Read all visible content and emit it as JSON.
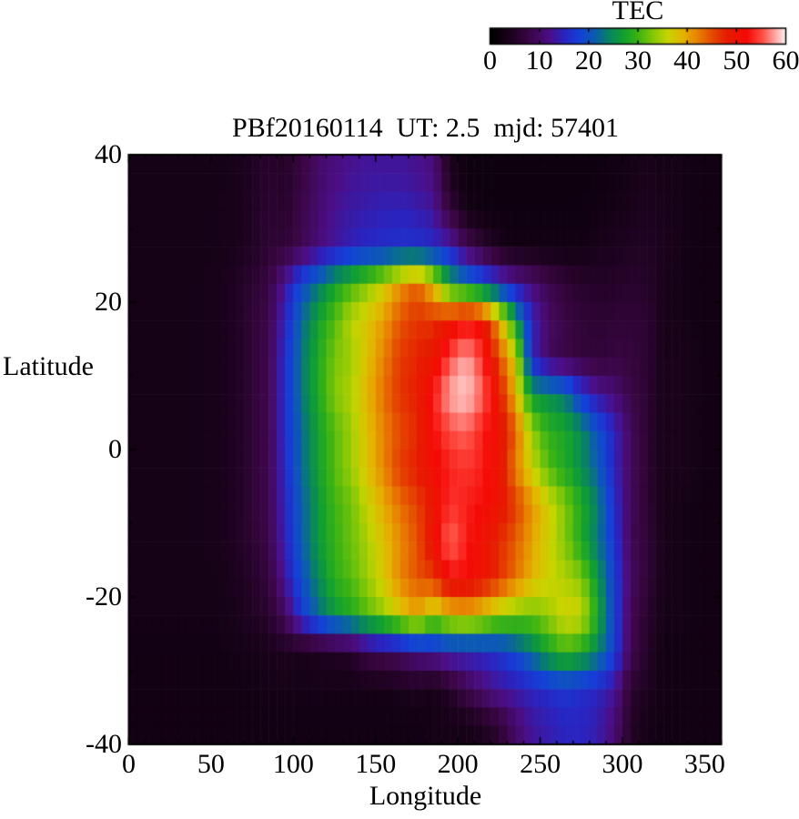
{
  "figure": {
    "title": "PBf20160114  UT: 2.5  mjd: 57401",
    "colorbar": {
      "title": "TEC",
      "min": 0,
      "max": 60,
      "tick_labels": [
        0,
        10,
        20,
        30,
        40,
        50,
        60
      ],
      "minor_ticks": [
        10,
        20,
        30,
        40,
        50
      ]
    },
    "x_axis": {
      "label": "Longitude",
      "min": 0,
      "max": 360,
      "major_ticks": [
        0,
        50,
        100,
        150,
        200,
        250,
        300,
        350
      ],
      "minor_tick_step": 10
    },
    "y_axis": {
      "label": "Latitude",
      "min": -40,
      "max": 40,
      "major_ticks": [
        40,
        20,
        0,
        -20,
        -40
      ],
      "minor_tick_step": 10
    }
  },
  "chart_data": {
    "type": "heatmap",
    "title": "PBf20160114  UT: 2.5  mjd: 57401",
    "xlabel": "Longitude",
    "ylabel": "Latitude",
    "zlabel": "TEC",
    "xlim": [
      0,
      360
    ],
    "ylim": [
      -40,
      40
    ],
    "zlim": [
      0,
      60
    ],
    "grid": false,
    "lon_centers": [
      5,
      15,
      25,
      35,
      45,
      55,
      65,
      75,
      85,
      95,
      105,
      115,
      125,
      135,
      145,
      155,
      165,
      175,
      185,
      195,
      205,
      215,
      225,
      235,
      245,
      255,
      265,
      275,
      285,
      295,
      305,
      315,
      325,
      335,
      345,
      355
    ],
    "lat_centers": [
      37.5,
      32.5,
      27.5,
      22.5,
      17.5,
      12.5,
      7.5,
      2.5,
      -2.5,
      -7.5,
      -12.5,
      -17.5,
      -22.5,
      -27.5,
      -32.5,
      -37.5
    ],
    "values": [
      [
        3,
        3,
        3,
        3,
        3,
        3,
        3.5,
        4.5,
        5.5,
        5,
        7.5,
        10,
        11.5,
        12.5,
        13,
        13,
        13,
        12.5,
        11.5,
        4,
        2,
        2,
        2,
        2,
        2,
        2,
        2,
        2,
        2,
        2.5,
        3,
        3.5,
        3,
        3,
        2.5,
        2.5
      ],
      [
        3,
        3,
        3,
        3,
        3,
        3.2,
        3.5,
        4.5,
        6,
        5.5,
        8,
        10.5,
        12.5,
        13.5,
        14,
        14.5,
        14.5,
        14,
        13,
        7,
        3,
        2,
        2,
        2,
        2,
        2,
        2,
        2,
        2.5,
        3,
        3.5,
        4,
        3.5,
        3,
        2.5,
        2.5
      ],
      [
        3,
        3,
        3,
        3,
        3,
        3.2,
        3.5,
        4.5,
        6,
        6.5,
        8.5,
        11,
        13,
        14.5,
        15.5,
        16,
        16.5,
        16.5,
        15.5,
        14,
        9,
        6,
        3.5,
        2.5,
        2.5,
        2.5,
        2.5,
        2.5,
        3.5,
        4,
        4.5,
        4.5,
        4,
        3,
        2.5,
        2.5
      ],
      [
        3,
        3,
        3,
        3,
        3.2,
        3.5,
        4.5,
        6,
        7.5,
        13,
        19,
        23,
        27,
        30,
        33,
        36.5,
        41,
        44,
        38,
        27,
        23.5,
        20,
        16.5,
        13,
        11,
        8.5,
        6.5,
        5.5,
        5,
        5,
        5.5,
        5,
        3.5,
        3,
        2.5,
        2.5
      ],
      [
        3,
        3,
        3,
        3,
        3.2,
        3.5,
        4.5,
        6.5,
        8,
        15,
        22,
        27,
        31,
        35.5,
        37.5,
        40.5,
        44.5,
        46.5,
        46.5,
        49,
        52,
        50,
        40,
        27,
        15,
        10,
        8,
        6.5,
        6,
        6.5,
        6.5,
        6,
        3.5,
        3,
        2.5,
        2.5
      ],
      [
        3,
        3,
        3,
        3,
        3.2,
        3.5,
        4.5,
        6.5,
        8.5,
        16,
        23,
        28,
        32.5,
        34,
        38,
        42,
        46,
        47.5,
        49,
        55,
        58,
        54,
        45,
        37,
        15,
        9.5,
        8,
        7,
        6.5,
        7.5,
        7,
        6,
        3.5,
        3.5,
        3,
        2.5
      ],
      [
        3,
        3,
        3,
        3,
        3.2,
        3.5,
        4.5,
        6.5,
        8.5,
        16,
        23,
        28,
        33,
        35,
        39,
        43,
        46.5,
        48,
        53,
        58,
        59,
        56,
        49,
        39,
        26,
        25,
        23,
        17,
        13,
        11,
        8,
        6,
        3.5,
        3.5,
        3,
        2.5
      ],
      [
        3,
        3,
        3,
        3,
        3.2,
        3.5,
        4.5,
        6.5,
        8.5,
        16,
        22,
        27,
        31,
        34,
        38,
        42,
        45,
        47,
        52,
        55,
        56,
        53,
        50,
        44,
        34,
        29,
        28,
        25,
        20,
        15,
        9.5,
        6,
        3.5,
        3.5,
        3,
        2.5
      ],
      [
        3,
        3,
        3,
        3,
        3.2,
        3.5,
        4.5,
        6.5,
        8.5,
        15.5,
        22,
        27,
        31,
        34,
        38,
        42,
        46,
        48,
        51,
        53,
        54,
        53,
        50,
        42,
        36,
        31,
        28,
        25,
        21,
        15,
        9.5,
        6,
        3.5,
        3.5,
        3,
        2.5
      ],
      [
        3,
        3,
        3,
        3,
        3.2,
        3.5,
        4.5,
        6.5,
        8.5,
        15,
        21,
        26,
        30,
        32,
        36,
        39.5,
        43,
        45.5,
        49,
        54,
        53,
        52,
        50,
        46,
        41,
        37,
        33,
        28.5,
        24,
        16,
        9.5,
        6,
        3.5,
        3,
        2.5,
        2.5
      ],
      [
        3,
        3,
        3,
        3,
        3.2,
        3.5,
        4.5,
        6,
        8,
        14.5,
        21,
        26,
        29.5,
        32,
        34.5,
        38,
        41.5,
        44.5,
        50,
        56.5,
        53,
        50,
        47,
        44,
        40,
        36.5,
        33,
        28,
        23,
        17,
        9,
        6.5,
        3.5,
        3,
        2.5,
        2.5
      ],
      [
        3,
        3,
        3,
        3,
        3,
        3.2,
        4,
        5,
        7,
        13,
        19.5,
        24.5,
        29,
        31,
        34,
        37.5,
        42,
        44.5,
        46,
        52,
        52,
        50,
        47,
        43,
        39,
        36.5,
        35,
        33,
        26,
        18,
        10,
        6.5,
        3.5,
        3,
        2.5,
        2.5
      ],
      [
        3,
        3,
        3,
        3,
        3,
        3,
        3.5,
        4.5,
        5.5,
        9.5,
        17,
        22,
        26,
        28,
        31,
        33.5,
        37,
        40,
        35,
        38,
        39,
        37,
        34,
        32.5,
        32,
        34,
        37,
        36.5,
        28,
        18.5,
        9,
        5.5,
        3,
        3,
        2.5,
        2.5
      ],
      [
        2.5,
        2.5,
        2.5,
        2.5,
        2.5,
        2.5,
        3,
        3,
        3.5,
        4,
        3.5,
        4,
        4.5,
        5,
        8,
        9,
        10,
        12,
        13,
        15,
        15,
        15.5,
        16.5,
        19,
        23,
        27,
        30,
        28,
        24,
        18,
        9,
        5,
        2.5,
        2.5,
        2.5,
        2.5
      ],
      [
        2.5,
        2.5,
        2.5,
        2.5,
        2.5,
        2.5,
        2.5,
        2.5,
        3,
        3,
        3,
        3,
        3,
        3,
        3,
        3,
        3.5,
        4,
        3,
        5,
        8,
        11,
        13,
        14,
        15,
        16,
        17,
        16,
        15,
        13,
        6,
        4,
        2.5,
        2.5,
        2.5,
        2.5
      ],
      [
        2.5,
        2.5,
        2.5,
        2.5,
        2.5,
        2.5,
        2.5,
        2.5,
        2.5,
        2.5,
        2.5,
        2.5,
        2.5,
        2.5,
        2.5,
        2.5,
        2.5,
        2.5,
        3,
        3,
        3,
        4,
        6,
        10,
        13,
        14,
        15,
        15,
        14,
        11,
        5,
        3,
        2.5,
        2.5,
        2.5,
        2.5
      ]
    ],
    "palette_stops": [
      [
        0,
        "#000000"
      ],
      [
        4,
        "#1c021e"
      ],
      [
        8,
        "#3c0646"
      ],
      [
        12,
        "#4c0e86"
      ],
      [
        15,
        "#2a24c0"
      ],
      [
        18,
        "#1440d8"
      ],
      [
        21,
        "#0c5ab4"
      ],
      [
        24,
        "#088264"
      ],
      [
        27,
        "#12a030"
      ],
      [
        30,
        "#3cb414"
      ],
      [
        33,
        "#84c808"
      ],
      [
        36,
        "#c8d400"
      ],
      [
        39,
        "#e4b400"
      ],
      [
        42,
        "#e88200"
      ],
      [
        45,
        "#e44a00"
      ],
      [
        48,
        "#e61c00"
      ],
      [
        52,
        "#f50a06"
      ],
      [
        55,
        "#ff4a40"
      ],
      [
        57,
        "#ff8c86"
      ],
      [
        59,
        "#ffd2d0"
      ],
      [
        60,
        "#ffffff"
      ]
    ]
  }
}
